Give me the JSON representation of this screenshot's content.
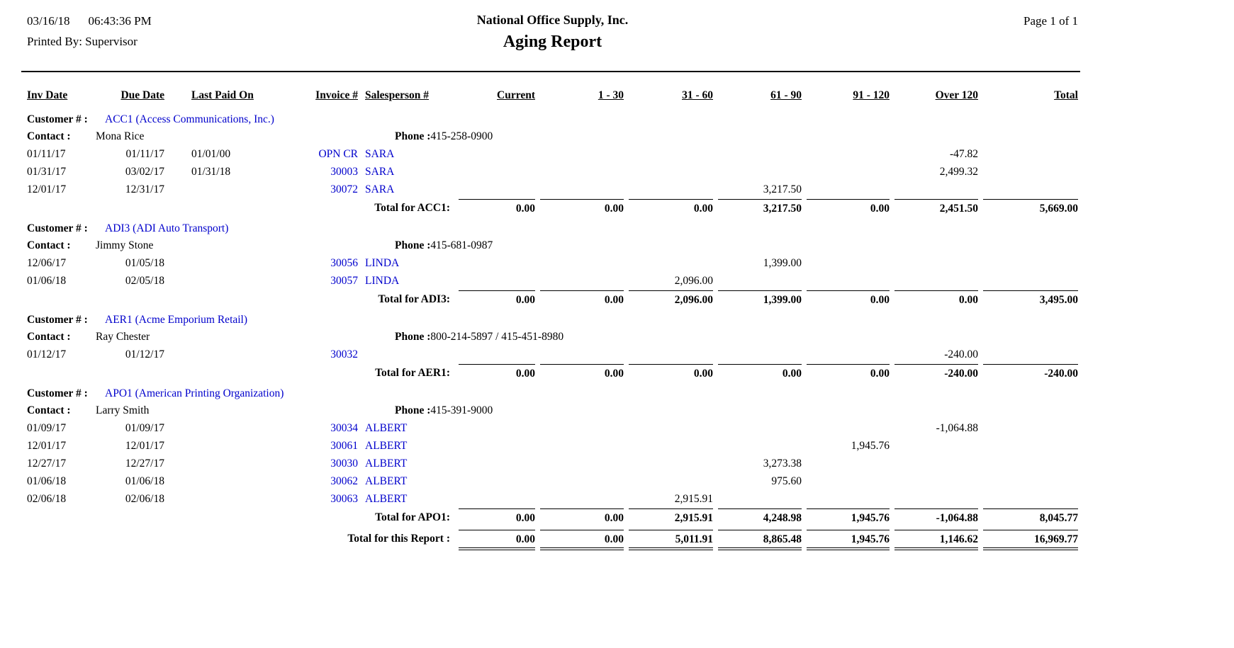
{
  "header": {
    "date": "03/16/18",
    "time": "06:43:36 PM",
    "printed_by": "Printed By: Supervisor",
    "company": "National Office Supply, Inc.",
    "title": "Aging Report",
    "page_info": "Page 1 of 1"
  },
  "columns": [
    "Inv Date",
    "Due Date",
    "Last Paid On",
    "Invoice #",
    "Salesperson #",
    "Current",
    "1 - 30",
    "31 - 60",
    "61 - 90",
    "91 - 120",
    "Over 120",
    "Total"
  ],
  "labels": {
    "customer": "Customer # :",
    "contact": "Contact :",
    "phone": "Phone :"
  },
  "colors": {
    "link_blue": "#0000cc"
  },
  "customers": [
    {
      "id": "ACC1 (Access Communications, Inc.)",
      "contact": "Mona Rice",
      "phone": "415-258-0900",
      "rows": [
        {
          "inv_date": "01/11/17",
          "due_date": "01/11/17",
          "last_paid": "01/01/00",
          "invoice": "OPN CR",
          "salesperson": "SARA",
          "amounts": [
            "",
            "",
            "",
            "",
            "",
            "-47.82",
            ""
          ]
        },
        {
          "inv_date": "01/31/17",
          "due_date": "03/02/17",
          "last_paid": "01/31/18",
          "invoice": "30003",
          "salesperson": "SARA",
          "amounts": [
            "",
            "",
            "",
            "",
            "",
            "2,499.32",
            ""
          ]
        },
        {
          "inv_date": "12/01/17",
          "due_date": "12/31/17",
          "last_paid": "",
          "invoice": "30072",
          "salesperson": "SARA",
          "amounts": [
            "",
            "",
            "",
            "3,217.50",
            "",
            "",
            ""
          ]
        }
      ],
      "total_label": "Total for ACC1:",
      "totals": [
        "0.00",
        "0.00",
        "0.00",
        "3,217.50",
        "0.00",
        "2,451.50",
        "5,669.00"
      ]
    },
    {
      "id": "ADI3 (ADI Auto Transport)",
      "contact": "Jimmy Stone",
      "phone": "415-681-0987",
      "rows": [
        {
          "inv_date": "12/06/17",
          "due_date": "01/05/18",
          "last_paid": "",
          "invoice": "30056",
          "salesperson": "LINDA",
          "amounts": [
            "",
            "",
            "",
            "1,399.00",
            "",
            "",
            ""
          ]
        },
        {
          "inv_date": "01/06/18",
          "due_date": "02/05/18",
          "last_paid": "",
          "invoice": "30057",
          "salesperson": "LINDA",
          "amounts": [
            "",
            "",
            "2,096.00",
            "",
            "",
            "",
            ""
          ]
        }
      ],
      "total_label": "Total for ADI3:",
      "totals": [
        "0.00",
        "0.00",
        "2,096.00",
        "1,399.00",
        "0.00",
        "0.00",
        "3,495.00"
      ]
    },
    {
      "id": "AER1 (Acme Emporium Retail)",
      "contact": "Ray Chester",
      "phone": "800-214-5897 / 415-451-8980",
      "rows": [
        {
          "inv_date": "01/12/17",
          "due_date": "01/12/17",
          "last_paid": "",
          "invoice": "30032",
          "salesperson": "",
          "amounts": [
            "",
            "",
            "",
            "",
            "",
            "-240.00",
            ""
          ]
        }
      ],
      "total_label": "Total for AER1:",
      "totals": [
        "0.00",
        "0.00",
        "0.00",
        "0.00",
        "0.00",
        "-240.00",
        "-240.00"
      ]
    },
    {
      "id": "APO1 (American Printing Organization)",
      "contact": "Larry Smith",
      "phone": "415-391-9000",
      "rows": [
        {
          "inv_date": "01/09/17",
          "due_date": "01/09/17",
          "last_paid": "",
          "invoice": "30034",
          "salesperson": "ALBERT",
          "amounts": [
            "",
            "",
            "",
            "",
            "",
            "-1,064.88",
            ""
          ]
        },
        {
          "inv_date": "12/01/17",
          "due_date": "12/01/17",
          "last_paid": "",
          "invoice": "30061",
          "salesperson": "ALBERT",
          "amounts": [
            "",
            "",
            "",
            "",
            "1,945.76",
            "",
            ""
          ]
        },
        {
          "inv_date": "12/27/17",
          "due_date": "12/27/17",
          "last_paid": "",
          "invoice": "30030",
          "salesperson": "ALBERT",
          "amounts": [
            "",
            "",
            "",
            "3,273.38",
            "",
            "",
            ""
          ]
        },
        {
          "inv_date": "01/06/18",
          "due_date": "01/06/18",
          "last_paid": "",
          "invoice": "30062",
          "salesperson": "ALBERT",
          "amounts": [
            "",
            "",
            "",
            "975.60",
            "",
            "",
            ""
          ]
        },
        {
          "inv_date": "02/06/18",
          "due_date": "02/06/18",
          "last_paid": "",
          "invoice": "30063",
          "salesperson": "ALBERT",
          "amounts": [
            "",
            "",
            "2,915.91",
            "",
            "",
            "",
            ""
          ]
        }
      ],
      "total_label": "Total for APO1:",
      "totals": [
        "0.00",
        "0.00",
        "2,915.91",
        "4,248.98",
        "1,945.76",
        "-1,064.88",
        "8,045.77"
      ]
    }
  ],
  "report_total": {
    "label": "Total for this Report :",
    "values": [
      "0.00",
      "0.00",
      "5,011.91",
      "8,865.48",
      "1,945.76",
      "1,146.62",
      "16,969.77"
    ]
  }
}
